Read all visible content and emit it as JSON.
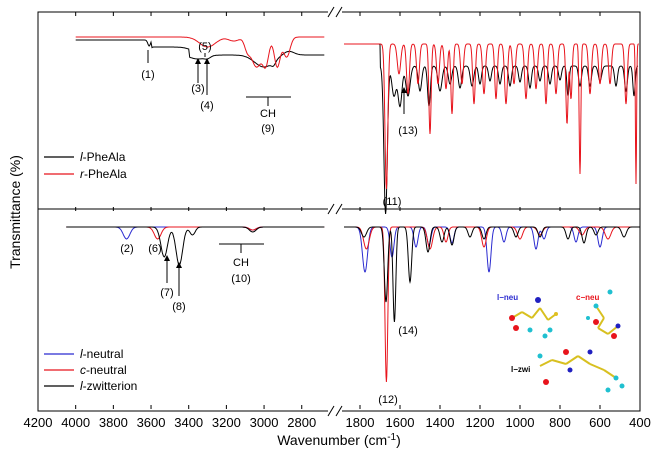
{
  "chart_data": {
    "type": "line",
    "xlabel_main": "Wavenumber (cm",
    "xlabel_sup": "-1",
    "xlabel_end": ")",
    "ylabel": "Transmittance (%)",
    "x_ticks_left": [
      4200,
      4000,
      3800,
      3600,
      3400,
      3200,
      3000,
      2800
    ],
    "x_ticks_right": [
      1800,
      1600,
      1400,
      1200,
      1000,
      800,
      600,
      400
    ],
    "x_ranges": [
      [
        4200,
        2650
      ],
      [
        1900,
        400
      ]
    ],
    "x_tick_labels": [
      "4200",
      "4000",
      "3800",
      "3600",
      "3400",
      "3200",
      "3000",
      "2800",
      "1800",
      "1600",
      "1400",
      "1200",
      "1000",
      "800",
      "600",
      "400"
    ],
    "panels": [
      {
        "name": "experimental",
        "legend": [
          "l-PheAla",
          "r-PheAla"
        ],
        "series": [
          {
            "name": "l-PheAla",
            "color": "#000000"
          },
          {
            "name": "r-PheAla",
            "color": "#e8141c"
          }
        ],
        "annotations": [
          "(1)",
          "(3)",
          "(4)",
          "(5)",
          "CH",
          "(9)",
          "(11)",
          "(13)"
        ]
      },
      {
        "name": "calculated",
        "legend": [
          "l-neutral",
          "c-neutral",
          "l-zwitterion"
        ],
        "series": [
          {
            "name": "l-neutral",
            "color": "#2b2bd0"
          },
          {
            "name": "c-neutral",
            "color": "#e8141c"
          },
          {
            "name": "l-zwitterion",
            "color": "#000000"
          }
        ],
        "annotations": [
          "(2)",
          "(6)",
          "(7)",
          "(8)",
          "CH",
          "(10)",
          "(12)",
          "(14)"
        ]
      }
    ],
    "legend_parts": [
      {
        "italic": "l",
        "rest": "-PheAla"
      },
      {
        "italic": "r",
        "rest": "-PheAla"
      },
      {
        "italic": "l",
        "rest": "-neutral"
      },
      {
        "italic": "c",
        "rest": "-neutral"
      },
      {
        "italic": "l",
        "rest": "-zwitterion"
      }
    ],
    "molecule_labels": [
      "l−neu",
      "c−neu",
      "l−zwi"
    ]
  }
}
